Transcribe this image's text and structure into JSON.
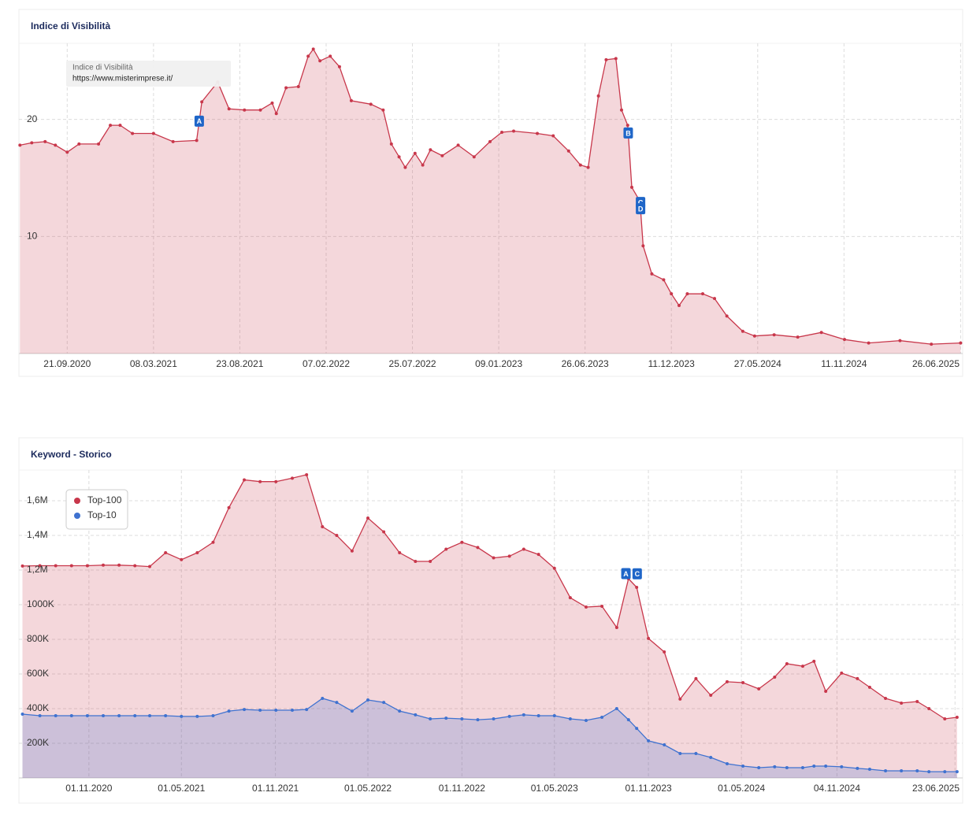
{
  "chart_data": [
    {
      "type": "area",
      "title": "Indice di Visibilità",
      "tooltip": [
        "Indice di Visibilità",
        "https://www.misterimprese.it/"
      ],
      "x": [
        "21.06.2020",
        "14.07.2020",
        "09.08.2020",
        "29.08.2020",
        "21.09.2020",
        "14.10.2020",
        "21.11.2020",
        "14.12.2020",
        "02.01.2021",
        "26.01.2021",
        "08.03.2021",
        "15.04.2021",
        "31.05.2021",
        "10.06.2021",
        "11.07.2021",
        "02.08.2021",
        "01.09.2021",
        "02.10.2021",
        "25.10.2021",
        "02.11.2021",
        "21.11.2021",
        "15.12.2021",
        "03.01.2022",
        "13.01.2022",
        "26.01.2022",
        "15.02.2022",
        "05.03.2022",
        "28.03.2022",
        "05.05.2022",
        "29.05.2022",
        "14.06.2022",
        "29.06.2022",
        "11.07.2022",
        "30.07.2022",
        "14.08.2022",
        "29.08.2022",
        "21.09.2022",
        "22.10.2022",
        "22.11.2022",
        "23.12.2022",
        "15.01.2023",
        "07.02.2023",
        "25.03.2023",
        "25.04.2023",
        "25.05.2023",
        "17.06.2023",
        "02.07.2023",
        "22.07.2023",
        "06.08.2023",
        "25.08.2023",
        "05.09.2023",
        "17.09.2023",
        "25.09.2023",
        "11.10.2023",
        "17.10.2023",
        "03.11.2023",
        "26.11.2023",
        "11.12.2023",
        "26.12.2023",
        "11.01.2024",
        "10.02.2024",
        "04.03.2024",
        "28.03.2024",
        "28.04.2024",
        "21.05.2024",
        "28.06.2024",
        "13.08.2024",
        "28.09.2024",
        "12.11.2024",
        "29.12.2024",
        "28.02.2025",
        "30.04.2025",
        "26.06.2025"
      ],
      "series": [
        {
          "color": "#c8374b",
          "values": [
            17.8,
            18.0,
            18.1,
            17.8,
            17.2,
            17.9,
            17.9,
            19.5,
            19.5,
            18.8,
            18.8,
            18.1,
            18.2,
            21.5,
            23.2,
            20.9,
            20.8,
            20.8,
            21.4,
            20.5,
            22.7,
            22.8,
            25.4,
            26.0,
            25.0,
            25.4,
            24.5,
            21.6,
            21.3,
            20.8,
            17.9,
            16.8,
            15.9,
            17.1,
            16.1,
            17.4,
            16.9,
            17.8,
            16.8,
            18.1,
            18.9,
            19.0,
            18.8,
            18.6,
            17.3,
            16.1,
            15.9,
            22.0,
            25.1,
            25.2,
            20.8,
            19.5,
            14.2,
            13.0,
            9.2,
            6.8,
            6.3,
            5.1,
            4.1,
            5.1,
            5.1,
            4.7,
            3.2,
            1.9,
            1.5,
            1.6,
            1.4,
            1.8,
            1.2,
            0.9,
            1.1,
            0.8,
            0.9
          ]
        }
      ],
      "annotations": [
        {
          "label": "A",
          "x": "05.06.2021"
        },
        {
          "label": "B",
          "x": "18.09.2023"
        },
        {
          "label": "C",
          "x": "12.10.2023"
        },
        {
          "label": "D",
          "x": "12.10.2023"
        }
      ],
      "xlim": [
        "19.06.2020",
        "30.06.2025"
      ],
      "xticks": [
        "21.09.2020",
        "08.03.2021",
        "23.08.2021",
        "07.02.2022",
        "25.07.2022",
        "09.01.2023",
        "26.06.2023",
        "11.12.2023",
        "27.05.2024",
        "11.11.2024",
        "26.06.2025"
      ],
      "ylim": [
        0,
        26.5
      ],
      "yticks": [
        10,
        20
      ],
      "grid": true
    },
    {
      "type": "area",
      "title": "Keyword - Storico",
      "legend": "top-left",
      "x": [
        "24.06.2020",
        "28.07.2020",
        "28.08.2020",
        "28.09.2020",
        "29.10.2020",
        "29.11.2020",
        "30.12.2020",
        "30.01.2021",
        "28.02.2021",
        "31.03.2021",
        "01.05.2021",
        "01.06.2021",
        "02.07.2021",
        "02.08.2021",
        "01.09.2021",
        "02.10.2021",
        "02.11.2021",
        "04.12.2021",
        "01.01.2022",
        "01.02.2022",
        "01.03.2022",
        "31.03.2022",
        "01.05.2022",
        "01.06.2022",
        "02.07.2022",
        "02.08.2022",
        "31.08.2022",
        "01.10.2022",
        "01.11.2022",
        "02.12.2022",
        "02.01.2023",
        "02.02.2023",
        "02.03.2023",
        "31.03.2023",
        "01.05.2023",
        "01.06.2023",
        "02.07.2023",
        "02.08.2023",
        "31.08.2023",
        "23.09.2023",
        "09.10.2023",
        "01.11.2023",
        "02.12.2023",
        "02.01.2024",
        "02.02.2024",
        "02.03.2024",
        "03.04.2024",
        "04.05.2024",
        "04.06.2024",
        "05.07.2024",
        "29.07.2024",
        "29.08.2024",
        "20.09.2024",
        "13.10.2024",
        "13.11.2024",
        "14.12.2024",
        "07.01.2025",
        "07.02.2025",
        "10.03.2025",
        "10.04.2025",
        "03.05.2025",
        "03.06.2025",
        "27.06.2025"
      ],
      "series": [
        {
          "name": "Top-100",
          "color": "#c8374b",
          "values": [
            1223000,
            1225000,
            1225000,
            1225000,
            1225000,
            1228000,
            1228000,
            1225000,
            1220000,
            1300000,
            1260000,
            1300000,
            1360000,
            1560000,
            1720000,
            1710000,
            1710000,
            1730000,
            1750000,
            1450000,
            1400000,
            1310000,
            1500000,
            1420000,
            1300000,
            1250000,
            1250000,
            1320000,
            1360000,
            1330000,
            1270000,
            1280000,
            1320000,
            1290000,
            1210000,
            1040000,
            986000,
            991000,
            868000,
            1150000,
            1100000,
            805000,
            727000,
            455000,
            573000,
            477000,
            555000,
            550000,
            514000,
            582000,
            659000,
            645000,
            673000,
            500000,
            605000,
            573000,
            523000,
            459000,
            432000,
            441000,
            400000,
            341000,
            350000
          ]
        },
        {
          "name": "Top-10",
          "color": "#3f72d0",
          "values": [
            368000,
            359000,
            359000,
            359000,
            359000,
            359000,
            359000,
            359000,
            359000,
            359000,
            355000,
            355000,
            359000,
            386000,
            395000,
            391000,
            391000,
            391000,
            395000,
            459000,
            436000,
            386000,
            450000,
            436000,
            386000,
            364000,
            341000,
            345000,
            341000,
            336000,
            341000,
            355000,
            364000,
            359000,
            359000,
            341000,
            332000,
            350000,
            400000,
            336000,
            286000,
            214000,
            191000,
            141000,
            141000,
            118000,
            82000,
            68000,
            59000,
            64000,
            59000,
            59000,
            68000,
            68000,
            64000,
            55000,
            50000,
            41000,
            41000,
            41000,
            36000,
            36000,
            36000
          ]
        }
      ],
      "annotations": [
        {
          "label": "A",
          "x": "18.09.2023"
        },
        {
          "label": "C",
          "x": "10.10.2023"
        }
      ],
      "xlim": [
        "17.06.2020",
        "08.07.2025"
      ],
      "xticks": [
        "01.11.2020",
        "01.05.2021",
        "01.11.2021",
        "01.05.2022",
        "01.11.2022",
        "01.05.2023",
        "01.11.2023",
        "01.05.2024",
        "04.11.2024",
        "23.06.2025"
      ],
      "ylim": [
        0,
        1777000
      ],
      "yticks": [
        {
          "value": 200000,
          "label": "200K"
        },
        {
          "value": 400000,
          "label": "400K"
        },
        {
          "value": 600000,
          "label": "600K"
        },
        {
          "value": 800000,
          "label": "800K"
        },
        {
          "value": 1000000,
          "label": "1000K"
        },
        {
          "value": 1200000,
          "label": "1,2M"
        },
        {
          "value": 1400000,
          "label": "1,4M"
        },
        {
          "value": 1600000,
          "label": "1,6M"
        }
      ],
      "grid": true
    }
  ]
}
